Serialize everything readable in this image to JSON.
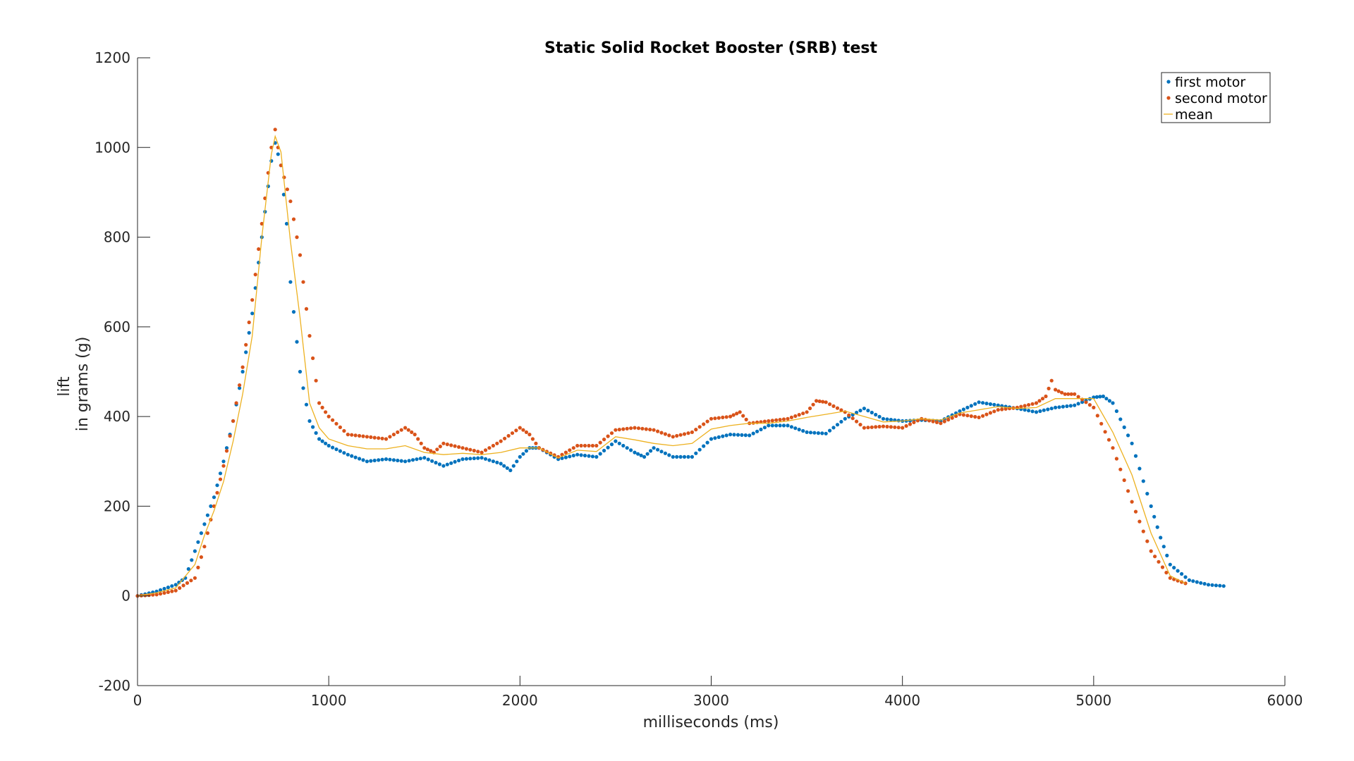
{
  "chart_data": {
    "type": "scatter",
    "title": "Static Solid Rocket Booster (SRB) test",
    "xlabel": "milliseconds (ms)",
    "ylabel_lines": [
      "lift",
      "in grams (g)"
    ],
    "xlim": [
      0,
      6000
    ],
    "ylim": [
      -200,
      1200
    ],
    "xticks": [
      0,
      1000,
      2000,
      3000,
      4000,
      5000,
      6000
    ],
    "yticks": [
      -200,
      0,
      200,
      400,
      600,
      800,
      1000,
      1200
    ],
    "grid": false,
    "legend_position": "top-right",
    "series": [
      {
        "name": "first motor",
        "style": "dots",
        "color": "#0072BD",
        "x": [
          0,
          100,
          200,
          250,
          300,
          350,
          400,
          450,
          500,
          550,
          600,
          650,
          700,
          720,
          750,
          780,
          800,
          850,
          900,
          950,
          1000,
          1100,
          1200,
          1300,
          1400,
          1500,
          1600,
          1700,
          1800,
          1900,
          1950,
          2000,
          2050,
          2100,
          2200,
          2300,
          2400,
          2500,
          2600,
          2650,
          2700,
          2800,
          2900,
          3000,
          3100,
          3200,
          3300,
          3400,
          3500,
          3600,
          3700,
          3800,
          3900,
          4000,
          4100,
          4200,
          4300,
          4400,
          4500,
          4600,
          4700,
          4800,
          4900,
          5000,
          5050,
          5100,
          5200,
          5300,
          5350,
          5400,
          5500,
          5600,
          5680
        ],
        "y": [
          0,
          10,
          25,
          40,
          100,
          160,
          220,
          300,
          390,
          500,
          630,
          800,
          970,
          1010,
          960,
          830,
          700,
          500,
          390,
          350,
          335,
          315,
          300,
          305,
          300,
          308,
          290,
          305,
          308,
          295,
          280,
          310,
          330,
          330,
          305,
          315,
          310,
          345,
          320,
          310,
          330,
          310,
          310,
          350,
          360,
          358,
          380,
          380,
          365,
          362,
          395,
          418,
          395,
          390,
          392,
          390,
          412,
          432,
          425,
          418,
          410,
          420,
          425,
          443,
          445,
          430,
          340,
          200,
          130,
          70,
          35,
          25,
          22
        ]
      },
      {
        "name": "second motor",
        "style": "dots",
        "color": "#D95319",
        "x": [
          0,
          100,
          200,
          300,
          350,
          400,
          450,
          500,
          550,
          600,
          650,
          700,
          720,
          750,
          800,
          850,
          900,
          950,
          1000,
          1100,
          1200,
          1300,
          1400,
          1450,
          1500,
          1550,
          1600,
          1700,
          1800,
          1900,
          2000,
          2050,
          2100,
          2200,
          2300,
          2400,
          2500,
          2600,
          2700,
          2800,
          2900,
          3000,
          3100,
          3150,
          3200,
          3300,
          3400,
          3500,
          3550,
          3600,
          3700,
          3800,
          3900,
          4000,
          4100,
          4200,
          4300,
          4400,
          4500,
          4600,
          4700,
          4750,
          4780,
          4800,
          4850,
          4900,
          5000,
          5100,
          5200,
          5300,
          5400,
          5480
        ],
        "y": [
          0,
          3,
          12,
          40,
          110,
          200,
          290,
          390,
          510,
          660,
          830,
          1000,
          1040,
          960,
          880,
          760,
          580,
          430,
          400,
          360,
          355,
          350,
          375,
          360,
          330,
          320,
          340,
          330,
          320,
          345,
          375,
          360,
          330,
          310,
          335,
          335,
          370,
          375,
          370,
          355,
          365,
          395,
          400,
          410,
          385,
          390,
          395,
          410,
          435,
          432,
          410,
          375,
          378,
          375,
          395,
          385,
          405,
          398,
          415,
          420,
          430,
          445,
          480,
          460,
          450,
          450,
          420,
          330,
          210,
          100,
          40,
          28
        ]
      },
      {
        "name": "mean",
        "style": "line",
        "color": "#EDB120",
        "x": [
          0,
          100,
          200,
          300,
          350,
          400,
          450,
          500,
          550,
          600,
          650,
          700,
          720,
          750,
          800,
          850,
          900,
          950,
          1000,
          1100,
          1200,
          1300,
          1400,
          1500,
          1600,
          1700,
          1800,
          1900,
          2000,
          2100,
          2200,
          2300,
          2400,
          2500,
          2600,
          2700,
          2800,
          2900,
          3000,
          3100,
          3200,
          3300,
          3400,
          3500,
          3600,
          3700,
          3800,
          3900,
          4000,
          4100,
          4200,
          4300,
          4400,
          4500,
          4600,
          4700,
          4800,
          4900,
          5000,
          5100,
          5200,
          5300,
          5400,
          5480
        ],
        "y": [
          0,
          7,
          18,
          70,
          135,
          190,
          255,
          345,
          450,
          580,
          800,
          985,
          1025,
          990,
          790,
          620,
          430,
          375,
          350,
          335,
          328,
          328,
          335,
          320,
          315,
          318,
          315,
          320,
          330,
          330,
          308,
          325,
          322,
          355,
          348,
          340,
          335,
          340,
          372,
          380,
          385,
          385,
          390,
          398,
          405,
          412,
          400,
          388,
          390,
          395,
          392,
          408,
          415,
          422,
          418,
          420,
          440,
          440,
          440,
          365,
          270,
          140,
          45,
          28
        ]
      }
    ]
  }
}
